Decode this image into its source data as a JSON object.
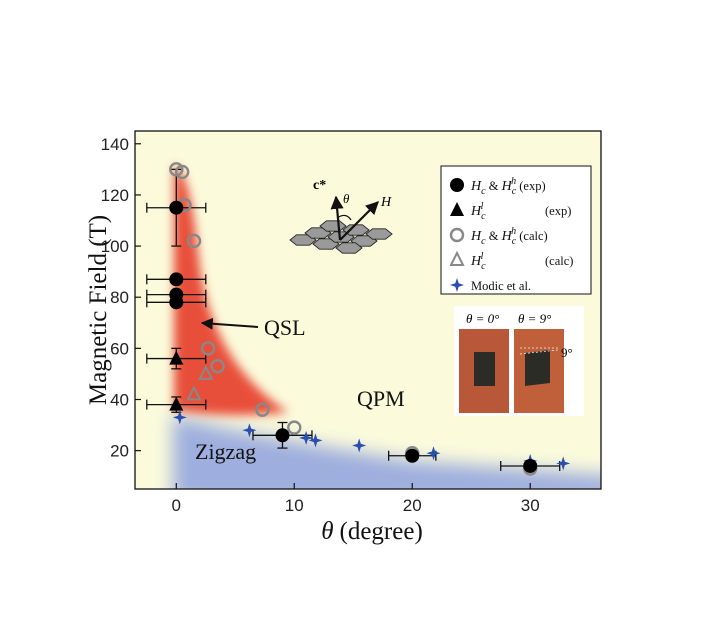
{
  "chart_data": {
    "type": "scatter",
    "xlabel_symbol": "θ",
    "xlabel_unit": "(degree)",
    "ylabel": "Magnetic Field (T)",
    "xlim": [
      -3.5,
      36
    ],
    "ylim": [
      5,
      145
    ],
    "xticks": [
      0,
      10,
      20,
      30
    ],
    "yticks": [
      20,
      40,
      60,
      80,
      100,
      120,
      140
    ],
    "regions": [
      {
        "label": "QSL",
        "color": "#e8503a"
      },
      {
        "label": "QPM",
        "color": "#fbfbdc"
      },
      {
        "label": "Zigzag",
        "color": "#9eaede"
      }
    ],
    "series": [
      {
        "name": "H_c & H_c^h (exp)",
        "marker": "filled-circle",
        "color": "#000000",
        "points": [
          {
            "x": 0,
            "y": 115,
            "xerr": 2.5,
            "yerr": 15
          },
          {
            "x": 0,
            "y": 87,
            "xerr": 2.5
          },
          {
            "x": 0,
            "y": 81,
            "xerr": 2.5
          },
          {
            "x": 0,
            "y": 78,
            "xerr": 2.5
          },
          {
            "x": 9,
            "y": 26,
            "xerr": 2.5,
            "yerr": 5
          },
          {
            "x": 20,
            "y": 18,
            "xerr": 2
          },
          {
            "x": 30,
            "y": 14,
            "xerr": 2.5
          }
        ]
      },
      {
        "name": "H_c^l (exp)",
        "marker": "filled-triangle",
        "color": "#000000",
        "points": [
          {
            "x": 0,
            "y": 56,
            "xerr": 2.5,
            "yerr": 4
          },
          {
            "x": 0,
            "y": 38,
            "xerr": 2.5,
            "yerr": 3
          }
        ]
      },
      {
        "name": "H_c & H_c^h (calc)",
        "marker": "open-circle",
        "color": "#888888",
        "points": [
          {
            "x": 0,
            "y": 130
          },
          {
            "x": 0.5,
            "y": 129
          },
          {
            "x": 0.7,
            "y": 116
          },
          {
            "x": 1.5,
            "y": 102
          },
          {
            "x": 2.7,
            "y": 60
          },
          {
            "x": 3.5,
            "y": 53
          },
          {
            "x": 7.3,
            "y": 36
          },
          {
            "x": 10,
            "y": 29
          },
          {
            "x": 20,
            "y": 19
          },
          {
            "x": 30,
            "y": 13
          }
        ]
      },
      {
        "name": "H_c^l (calc)",
        "marker": "open-triangle",
        "color": "#888888",
        "points": [
          {
            "x": 2.5,
            "y": 50
          },
          {
            "x": 1.5,
            "y": 42
          }
        ]
      },
      {
        "name": "Modic et al.",
        "marker": "star",
        "color": "#2a4fb0",
        "points": [
          {
            "x": 0.3,
            "y": 33
          },
          {
            "x": 6.2,
            "y": 28
          },
          {
            "x": 11,
            "y": 25
          },
          {
            "x": 11.8,
            "y": 24
          },
          {
            "x": 15.5,
            "y": 22
          },
          {
            "x": 21.8,
            "y": 19
          },
          {
            "x": 30,
            "y": 16
          },
          {
            "x": 32.8,
            "y": 15
          }
        ]
      }
    ],
    "legend": {
      "placement": "top-right",
      "entries": [
        {
          "marker": "filled-circle",
          "main": "H",
          "sub": "c",
          "mid": " & ",
          "main2": "H",
          "sub2": "c",
          "sup2": "h",
          "tail": " (exp)"
        },
        {
          "marker": "filled-triangle",
          "main": "H",
          "sub": "c",
          "sup": "l",
          "tail": "(exp)"
        },
        {
          "marker": "open-circle",
          "main": "H",
          "sub": "c",
          "mid": " & ",
          "main2": "H",
          "sub2": "c",
          "sup2": "h",
          "tail": " (calc)"
        },
        {
          "marker": "open-triangle",
          "main": "H",
          "sub": "c",
          "sup": "l",
          "tail": "(calc)"
        },
        {
          "marker": "star",
          "main": "Modic et al.",
          "sub": "",
          "tail": ""
        }
      ]
    },
    "annotations": {
      "qsl_arrow_text": "QSL",
      "inset_lattice": {
        "c_axis": "c*",
        "angle": "θ",
        "field": "H"
      },
      "inset_photo": {
        "left_label": "θ = 0°",
        "right_label": "θ = 9°",
        "angle_mark": "9°"
      }
    }
  }
}
